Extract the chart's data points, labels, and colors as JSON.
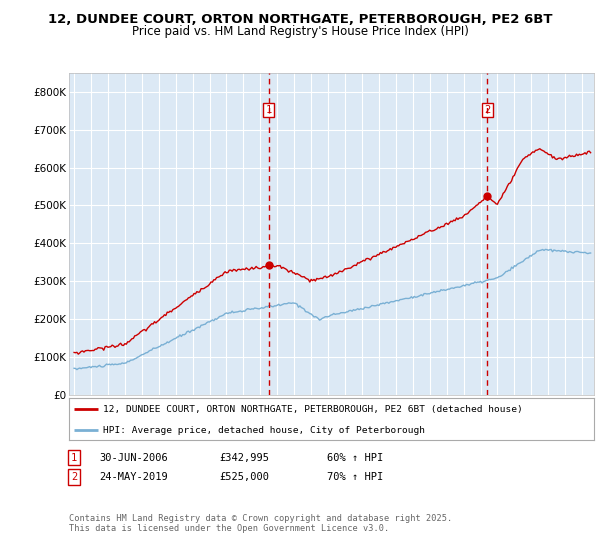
{
  "title_line1": "12, DUNDEE COURT, ORTON NORTHGATE, PETERBOROUGH, PE2 6BT",
  "title_line2": "Price paid vs. HM Land Registry's House Price Index (HPI)",
  "background_color": "#ffffff",
  "plot_bg_color": "#dce9f5",
  "grid_color": "#ffffff",
  "hpi_color": "#7ab0d4",
  "price_color": "#cc0000",
  "sale1_date": 2006.5,
  "sale1_price": 342995,
  "sale1_label": "1",
  "sale2_date": 2019.4,
  "sale2_price": 525000,
  "sale2_label": "2",
  "ylim": [
    0,
    850000
  ],
  "xlim": [
    1994.7,
    2025.7
  ],
  "yticks": [
    0,
    100000,
    200000,
    300000,
    400000,
    500000,
    600000,
    700000,
    800000
  ],
  "legend_label_price": "12, DUNDEE COURT, ORTON NORTHGATE, PETERBOROUGH, PE2 6BT (detached house)",
  "legend_label_hpi": "HPI: Average price, detached house, City of Peterborough",
  "footnote": "Contains HM Land Registry data © Crown copyright and database right 2025.\nThis data is licensed under the Open Government Licence v3.0.",
  "row1_num": "1",
  "row1_date": "30-JUN-2006",
  "row1_price": "£342,995",
  "row1_hpi": "60% ↑ HPI",
  "row2_num": "2",
  "row2_date": "24-MAY-2019",
  "row2_price": "£525,000",
  "row2_hpi": "70% ↑ HPI"
}
